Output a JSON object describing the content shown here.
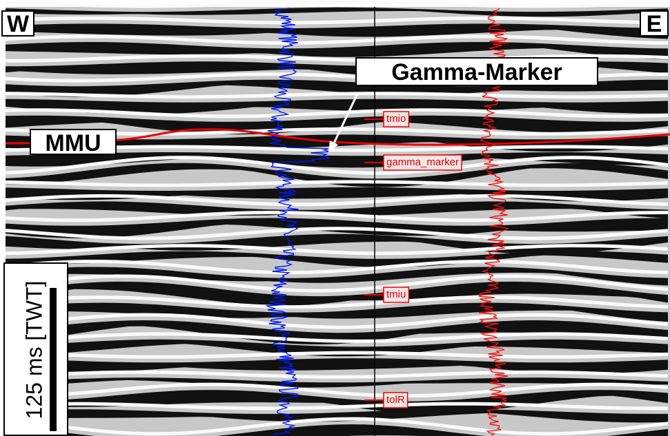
{
  "labels": {
    "west": "W",
    "east": "E",
    "callout": "Gamma-Marker",
    "horizon": "MMU",
    "scale_bar": "125 ms [TWT]"
  },
  "markers": [
    {
      "label": "tmio"
    },
    {
      "label": "gamma_marker"
    },
    {
      "label": "tmiu"
    },
    {
      "label": "tolR"
    }
  ]
}
